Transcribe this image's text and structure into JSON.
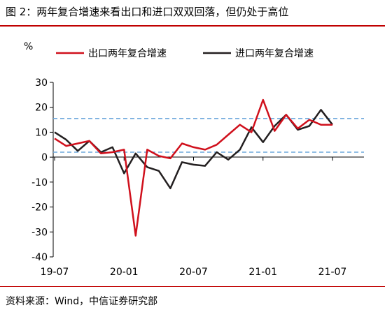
{
  "figure": {
    "title": "图 2：两年复合增速来看出口和进口双双回落，但仍处于高位",
    "source": "资料来源：Wind，中信证券研究部"
  },
  "colors": {
    "export": "#d0101c",
    "import": "#231f20",
    "reference": "#6fa8dc",
    "rule": "#c00000"
  },
  "chart_data": {
    "type": "line",
    "ylabel": "%",
    "ylim": [
      -40,
      30
    ],
    "yticks": [
      30,
      20,
      10,
      0,
      -10,
      -20,
      -30,
      -40
    ],
    "x": [
      "19-07",
      "19-08",
      "19-09",
      "19-10",
      "19-11",
      "19-12",
      "20-01",
      "20-02",
      "20-03",
      "20-04",
      "20-05",
      "20-06",
      "20-07",
      "20-08",
      "20-09",
      "20-10",
      "20-11",
      "20-12",
      "21-01",
      "21-02",
      "21-03",
      "21-04",
      "21-05",
      "21-06",
      "21-07"
    ],
    "xtick_labels": [
      "19-07",
      "20-01",
      "20-07",
      "21-01",
      "21-07"
    ],
    "xtick_index": [
      0,
      6,
      12,
      18,
      24
    ],
    "grid": false,
    "legend_position": "top",
    "series": [
      {
        "name": "出口两年复合增速",
        "color": "#d0101c",
        "values": [
          7.5,
          4.5,
          5.5,
          6.5,
          1.5,
          2,
          3,
          -31.5,
          3,
          0.5,
          -0.5,
          5.5,
          4,
          3,
          5,
          9,
          13,
          10,
          23,
          10.5,
          17,
          11.5,
          15,
          13,
          13
        ]
      },
      {
        "name": "进口两年复合增速",
        "color": "#231f20",
        "values": [
          10,
          7,
          2.5,
          6.5,
          2,
          4,
          -6.5,
          1.5,
          -4,
          -5.5,
          -12.5,
          -2,
          -3,
          -3.5,
          2,
          -1,
          3,
          12,
          6,
          12.5,
          17,
          11,
          12.5,
          19,
          13
        ]
      }
    ],
    "reference_lines": [
      15.5,
      2
    ]
  }
}
